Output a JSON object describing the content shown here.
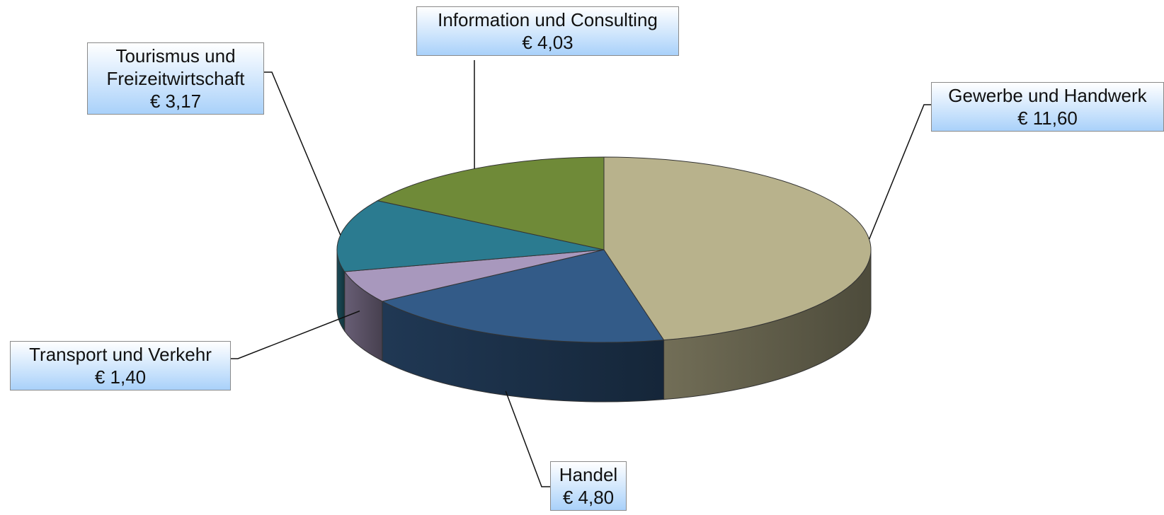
{
  "chart_data": {
    "type": "pie3d",
    "categories": [
      "Gewerbe und Handwerk",
      "Handel",
      "Transport und Verkehr",
      "Tourismus und Freizeitwirtschaft",
      "Information und Consulting"
    ],
    "values": [
      11.6,
      4.8,
      1.4,
      3.17,
      4.03
    ],
    "value_labels": [
      "€ 11,60",
      "€ 4,80",
      "€ 1,40",
      "€ 3,17",
      "€ 4,03"
    ],
    "colors": [
      "#b8b28c",
      "#335b88",
      "#a898bd",
      "#2b7b90",
      "#6f8a38"
    ]
  }
}
